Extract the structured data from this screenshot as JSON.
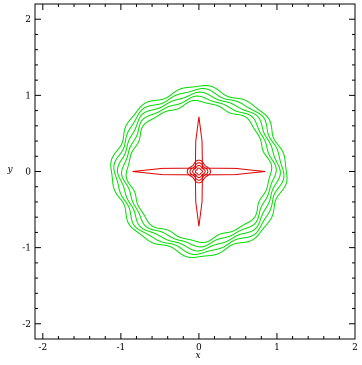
{
  "chart_data": {
    "type": "contour",
    "xlabel": "x",
    "ylabel": "y",
    "xlim": [
      -2.1,
      2.0
    ],
    "ylim": [
      -2.2,
      2.2
    ],
    "x_ticks": [
      -2,
      -1,
      0,
      1,
      2
    ],
    "y_ticks": [
      -2,
      -1,
      0,
      1,
      2
    ],
    "x_tick_labels": [
      "-2",
      "-1",
      "0",
      "1",
      "2"
    ],
    "y_tick_labels": [
      "-2",
      "-1",
      "0",
      "1",
      "2"
    ],
    "grid": false,
    "series": [
      {
        "color": "#00dd00",
        "shape": "ring",
        "description_radii": [
          0.9,
          0.95,
          1.0,
          1.05,
          1.1
        ]
      },
      {
        "color": "#dd0000",
        "shape": "cross",
        "arm_length": [
          0.85,
          0.72
        ],
        "inner_rings": [
          0.04,
          0.07,
          0.1,
          0.13
        ]
      }
    ],
    "colors": {
      "axis": "#000000",
      "ring": "#00dd00",
      "cross": "#dd0000"
    }
  }
}
